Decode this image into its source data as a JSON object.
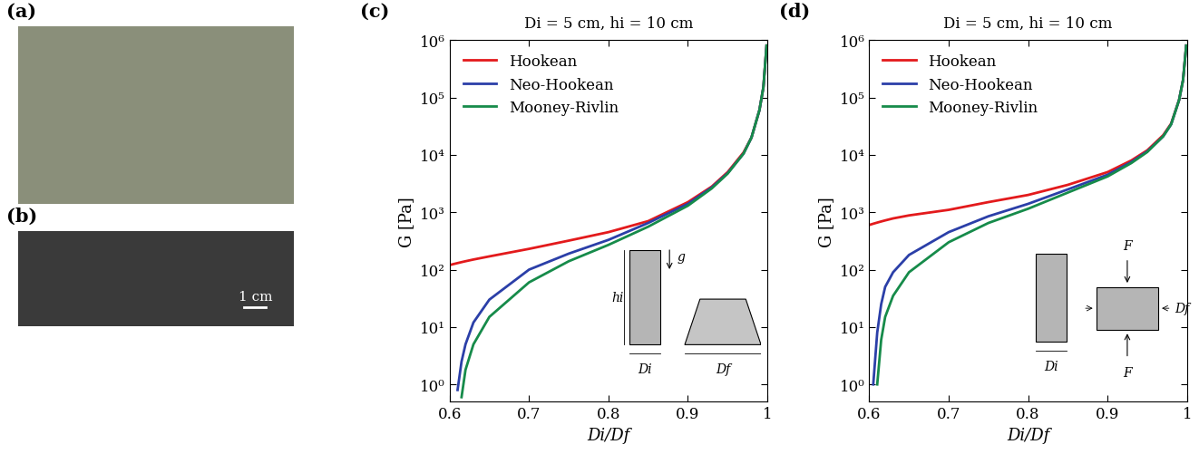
{
  "panels": [
    {
      "label": "(a)",
      "type": "photo"
    },
    {
      "label": "(b)",
      "type": "photo",
      "scale_bar": "1 cm"
    }
  ],
  "chart_data": [
    {
      "type": "line",
      "panel": "(c)",
      "title": "Di = 5 cm, hi = 10 cm",
      "xlabel": "Di/Df",
      "ylabel": "G [Pa]",
      "x": [
        0.6,
        0.605,
        0.61,
        0.615,
        0.62,
        0.63,
        0.65,
        0.7,
        0.75,
        0.8,
        0.85,
        0.9,
        0.93,
        0.95,
        0.97,
        0.98,
        0.99,
        0.995,
        0.999
      ],
      "series": [
        {
          "name": "Hookean",
          "color": "#e31a1c",
          "values": [
            120,
            125,
            130,
            135,
            140,
            150,
            170,
            230,
            320,
            450,
            700,
            1500,
            2800,
            5000,
            11000,
            20000,
            60000,
            150000,
            800000
          ]
        },
        {
          "name": "Neo-Hookean",
          "color": "#2b3fa8",
          "values": [
            null,
            null,
            0.8,
            2.5,
            5,
            12,
            30,
            100,
            190,
            330,
            650,
            1400,
            2700,
            4800,
            10500,
            20000,
            60000,
            150000,
            800000
          ]
        },
        {
          "name": "Mooney-Rivlin",
          "color": "#168b4a",
          "values": [
            null,
            null,
            null,
            0.6,
            1.8,
            5,
            15,
            60,
            140,
            270,
            560,
            1300,
            2600,
            4700,
            10500,
            20000,
            60000,
            150000,
            800000
          ]
        }
      ],
      "xlim": [
        0.6,
        1
      ],
      "ylim": [
        0.5,
        1000000
      ],
      "xticks": [
        0.6,
        0.7,
        0.8,
        0.9,
        1
      ],
      "yticks": [
        {
          "value": 1,
          "label": "10⁰"
        },
        {
          "value": 10,
          "label": "10¹"
        },
        {
          "value": 100,
          "label": "10²"
        },
        {
          "value": 1000,
          "label": "10³"
        },
        {
          "value": 10000,
          "label": "10⁴"
        },
        {
          "value": 100000,
          "label": "10⁵"
        },
        {
          "value": 1000000,
          "label": "10⁶"
        }
      ],
      "log": "y",
      "legend": "upper left",
      "grid": false,
      "annotations": [
        "hi",
        "Di",
        "Df",
        "g"
      ]
    },
    {
      "type": "line",
      "panel": "(d)",
      "title": "Di = 5 cm, hi = 10 cm",
      "xlabel": "Di/Df",
      "ylabel": "G [Pa]",
      "x": [
        0.6,
        0.605,
        0.61,
        0.615,
        0.62,
        0.63,
        0.65,
        0.7,
        0.75,
        0.8,
        0.85,
        0.9,
        0.93,
        0.95,
        0.97,
        0.98,
        0.99,
        0.995,
        0.999
      ],
      "series": [
        {
          "name": "Hookean",
          "color": "#e31a1c",
          "values": [
            600,
            630,
            660,
            690,
            720,
            780,
            880,
            1100,
            1500,
            2000,
            3000,
            5000,
            8000,
            12000,
            22000,
            35000,
            90000,
            200000,
            800000
          ]
        },
        {
          "name": "Neo-Hookean",
          "color": "#2b3fa8",
          "values": [
            null,
            1,
            8,
            25,
            50,
            90,
            180,
            450,
            850,
            1400,
            2500,
            4500,
            7500,
            11500,
            21000,
            34000,
            90000,
            200000,
            800000
          ]
        },
        {
          "name": "Mooney-Rivlin",
          "color": "#168b4a",
          "values": [
            null,
            null,
            1,
            6,
            15,
            35,
            90,
            300,
            650,
            1150,
            2200,
            4200,
            7200,
            11200,
            21000,
            34000,
            90000,
            200000,
            800000
          ]
        }
      ],
      "xlim": [
        0.6,
        1
      ],
      "ylim": [
        0.5,
        1000000
      ],
      "xticks": [
        0.6,
        0.7,
        0.8,
        0.9,
        1
      ],
      "yticks": [
        {
          "value": 1,
          "label": "10⁰"
        },
        {
          "value": 10,
          "label": "10¹"
        },
        {
          "value": 100,
          "label": "10²"
        },
        {
          "value": 1000,
          "label": "10³"
        },
        {
          "value": 10000,
          "label": "10⁴"
        },
        {
          "value": 100000,
          "label": "10⁵"
        },
        {
          "value": 1000000,
          "label": "10⁶"
        }
      ],
      "log": "y",
      "legend": "upper left",
      "grid": false,
      "annotations": [
        "Di",
        "Df",
        "F",
        "F"
      ]
    }
  ]
}
